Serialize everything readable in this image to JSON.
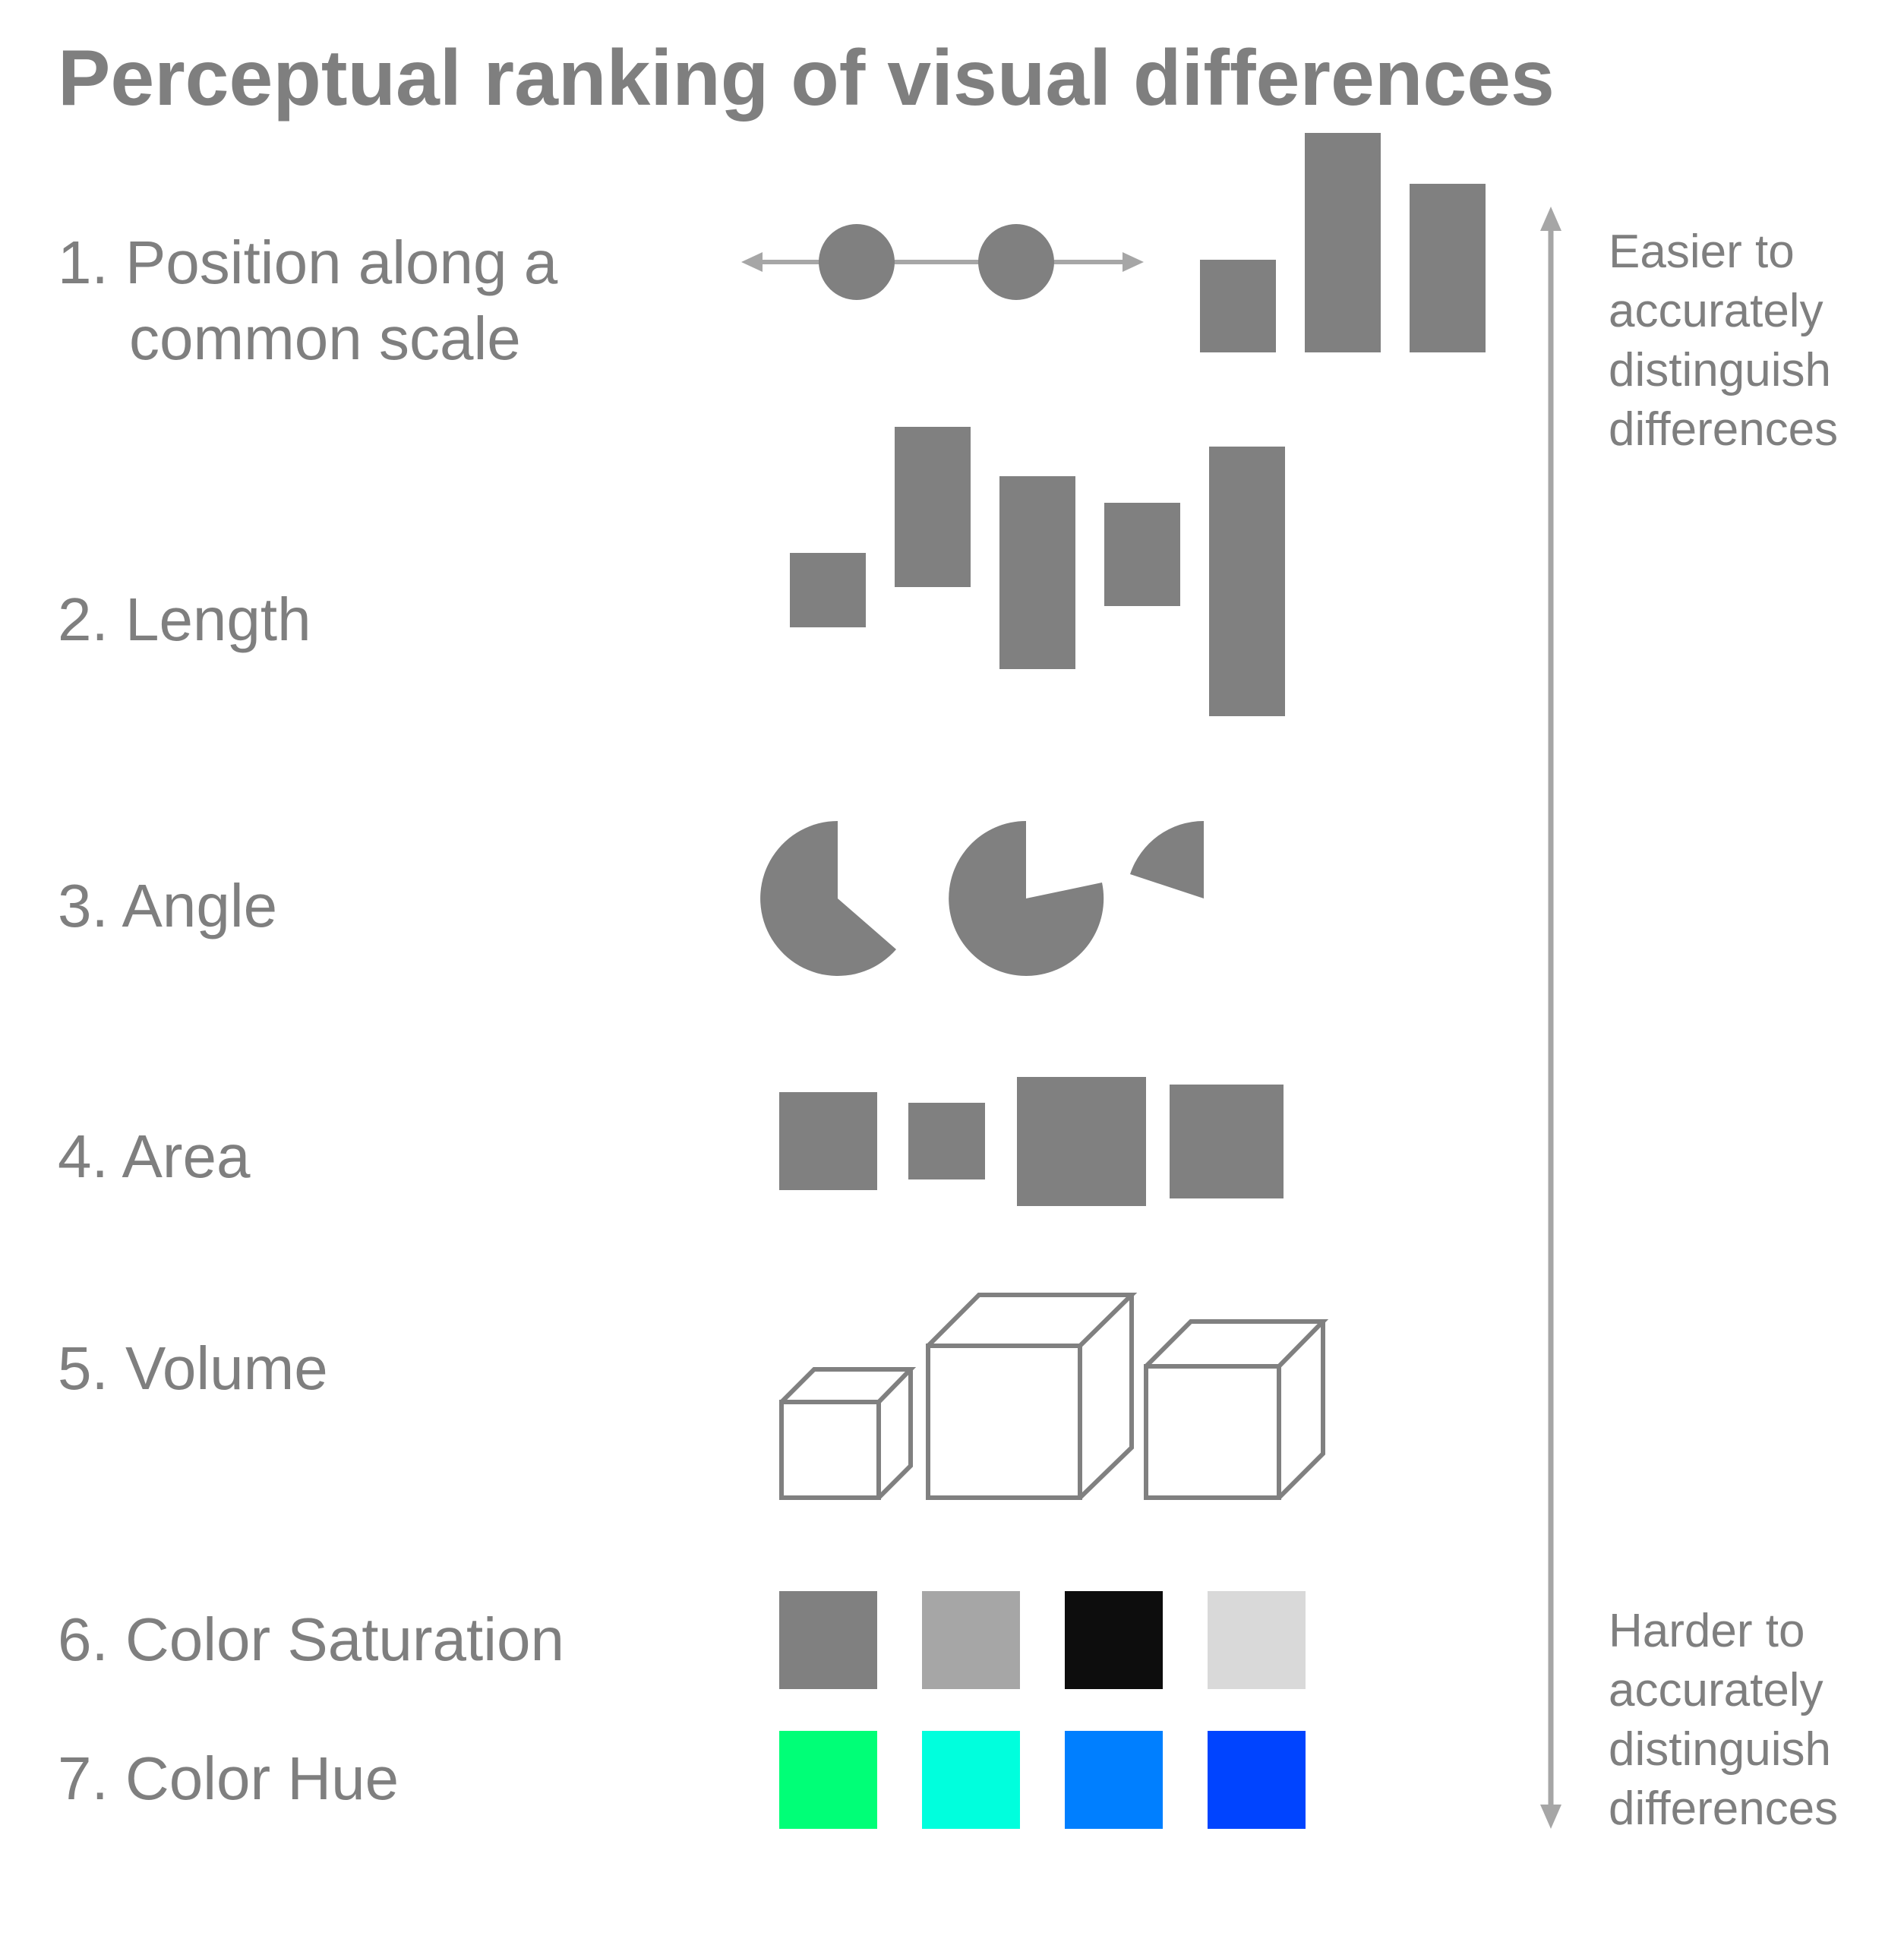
{
  "title": "Perceptual ranking of visual differences",
  "rankings": [
    {
      "label": "1. Position along a",
      "label_cont": "common scale"
    },
    {
      "label": "2. Length"
    },
    {
      "label": "3. Angle"
    },
    {
      "label": "4. Area"
    },
    {
      "label": "5. Volume"
    },
    {
      "label": "6. Color Saturation",
      "swatches": [
        "#808080",
        "#a6a6a6",
        "#0d0d0d",
        "#d9d9d9"
      ]
    },
    {
      "label": "7. Color Hue",
      "swatches": [
        "#00ff77",
        "#00ffdd",
        "#007fff",
        "#0044ff"
      ]
    }
  ],
  "top_note": [
    "Easier to",
    "accurately",
    "distinguish",
    "differences"
  ],
  "bottom_note": [
    "Harder to",
    "accurately",
    "distinguish",
    "differences"
  ],
  "colors": {
    "shape_fill": "#808080",
    "arrow": "#a6a6a6",
    "text": "#7f7f7f"
  }
}
